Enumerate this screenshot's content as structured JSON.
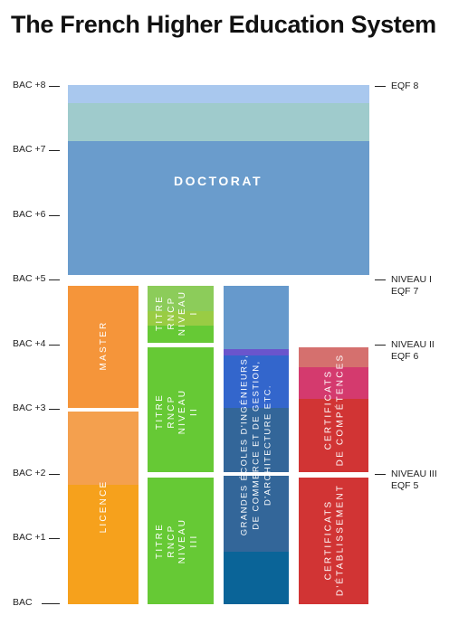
{
  "title": "The French Higher Education System",
  "left_axis": [
    "BAC +8",
    "BAC +7",
    "BAC +6",
    "BAC +5",
    "BAC +4",
    "BAC +3",
    "BAC +2",
    "BAC +1",
    "BAC"
  ],
  "right_axis": {
    "eqf8": [
      "EQF 8"
    ],
    "niveau1": [
      "NIVEAU I",
      "EQF 7"
    ],
    "niveau2": [
      "NIVEAU II",
      "EQF 6"
    ],
    "niveau3": [
      "NIVEAU III",
      "EQF 5"
    ]
  },
  "blocks": {
    "doctorat": "DOCTORAT",
    "master": "MASTER",
    "licence": "LICENCE",
    "rncp1": "TITRE\nRNCP\nNIVEAU\nI",
    "rncp2": "TITRE\nRNCP\nNIVEAU\nII",
    "rncp3": "TITRE\nRNCP\nNIVEAU\nIII",
    "grandes_ecoles": "GRANDES ÉCOLES D'INGÉNIEURS,\nDE COMMERCE ET DE GESTION,\nD'ARCHITECTURE ETC.",
    "cert_competences": "CERTIFICATS\nDE COMPÉTENCES",
    "cert_etablissement": "CERTIFICATS\nD'ÉTABLISSEMENT"
  },
  "colors": {
    "doctorat_top": "#a9c8ee",
    "doctorat_mid": "#9fcbcc",
    "doctorat_main": "#6a9ccc",
    "orange_light": "#f5953a",
    "orange_mid": "#f4a04e",
    "orange_dark": "#f6a11c",
    "green_light": "#8ccc5a",
    "green_main": "#66c935",
    "blue_light": "#6699cc",
    "blue_purple": "#6a55cc",
    "blue_bright": "#3366cc",
    "blue_mid": "#336699",
    "blue_dark": "#0a6498",
    "red_pink": "#d5706e",
    "red_magenta": "#d43a6e",
    "red_main": "#d13434"
  }
}
